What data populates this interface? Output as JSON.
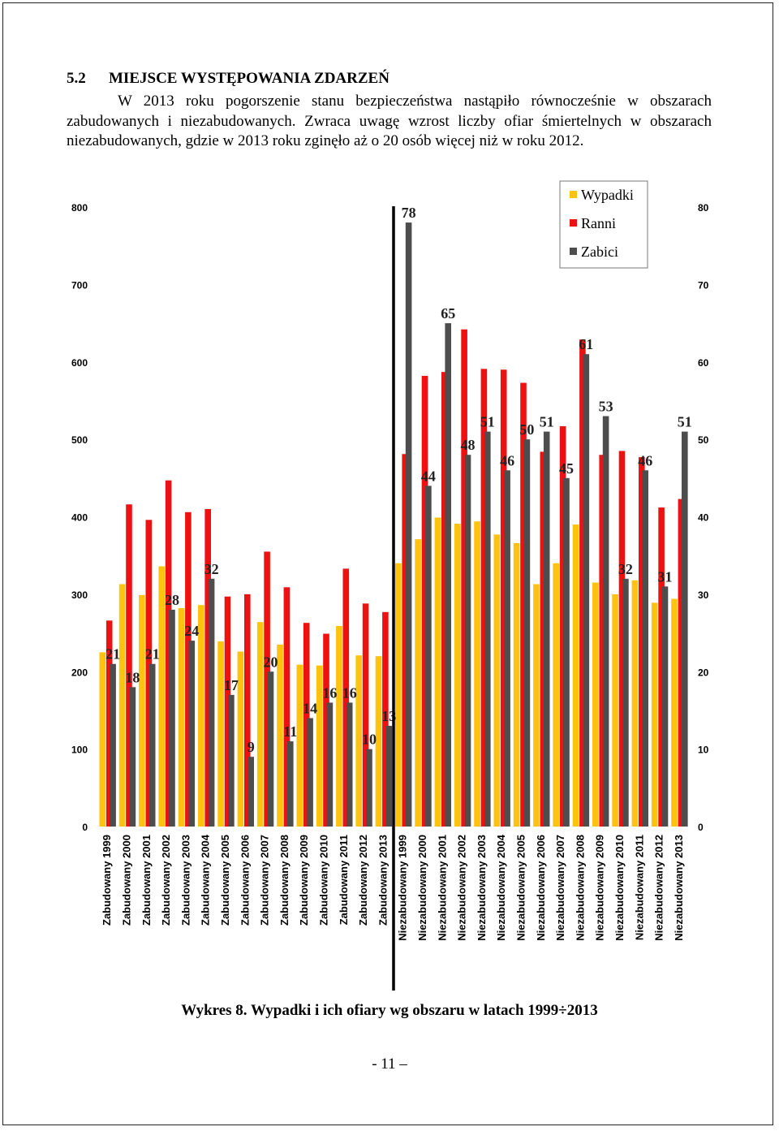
{
  "document": {
    "section_number": "5.2",
    "section_title": "MIEJSCE WYSTĘPOWANIA ZDARZEŃ",
    "paragraph": "W 2013 roku pogorszenie stanu bezpieczeństwa nastąpiło równocześnie w obszarach zabudowanych i niezabudowanych. Zwraca uwagę wzrost liczby ofiar śmiertelnych w obszarach niezabudowanych, gdzie w 2013 roku zginęło aż o 20 osób więcej niż w roku 2012.",
    "caption": "Wykres 8. Wypadki i ich ofiary wg obszaru w latach 1999÷2013",
    "page_number": "- 11 –"
  },
  "chart_data": {
    "type": "bar",
    "categories": [
      "Zabudowany 1999",
      "Zabudowany 2000",
      "Zabudowany 2001",
      "Zabudowany 2002",
      "Zabudowany 2003",
      "Zabudowany 2004",
      "Zabudowany 2005",
      "Zabudowany 2006",
      "Zabudowany 2007",
      "Zabudowany 2008",
      "Zabudowany 2009",
      "Zabudowany 2010",
      "Zabudowany 2011",
      "Zabudowany 2012",
      "Zabudowany 2013",
      "Niezabudowany 1999",
      "Niezabudowany 2000",
      "Niezabudowany 2001",
      "Niezabudowany 2002",
      "Niezabudowany 2003",
      "Niezabudowany 2004",
      "Niezabudowany 2005",
      "Niezabudowany 2006",
      "Niezabudowany 2007",
      "Niezabudowany 2008",
      "Niezabudowany 2009",
      "Niezabudowany 2010",
      "Niezabudowany 2011",
      "Niezabudowany 2012",
      "Niezabudowany 2013"
    ],
    "series": [
      {
        "name": "Wypadki",
        "axis": "left",
        "color": "#FFC20E",
        "values": [
          225,
          313,
          299,
          336,
          282,
          286,
          239,
          226,
          264,
          235,
          209,
          208,
          259,
          221,
          220,
          340,
          371,
          399,
          391,
          394,
          377,
          366,
          313,
          340,
          390,
          315,
          300,
          318,
          289,
          294
        ]
      },
      {
        "name": "Ranni",
        "axis": "left",
        "color": "#EE1111",
        "values": [
          266,
          416,
          396,
          447,
          406,
          410,
          297,
          300,
          355,
          309,
          263,
          249,
          333,
          288,
          277,
          481,
          582,
          587,
          642,
          591,
          590,
          573,
          484,
          517,
          629,
          480,
          485,
          477,
          412,
          423
        ]
      },
      {
        "name": "Zabici",
        "axis": "right",
        "color": "#4D4D4D",
        "values": [
          21,
          18,
          21,
          28,
          24,
          32,
          17,
          9,
          20,
          11,
          14,
          16,
          16,
          10,
          13,
          78,
          44,
          65,
          48,
          51,
          46,
          50,
          51,
          45,
          61,
          53,
          32,
          46,
          31,
          51
        ]
      }
    ],
    "ylim_left": [
      0,
      800
    ],
    "ylim_right": [
      0,
      80
    ],
    "yticks_left": [
      0,
      100,
      200,
      300,
      400,
      500,
      600,
      700,
      800
    ],
    "yticks_right": [
      0,
      10,
      20,
      30,
      40,
      50,
      60,
      70,
      80
    ],
    "legend_placement": "top-right",
    "grid": false,
    "divider": "between Zabudowany 2013 and Niezabudowany 1999"
  }
}
